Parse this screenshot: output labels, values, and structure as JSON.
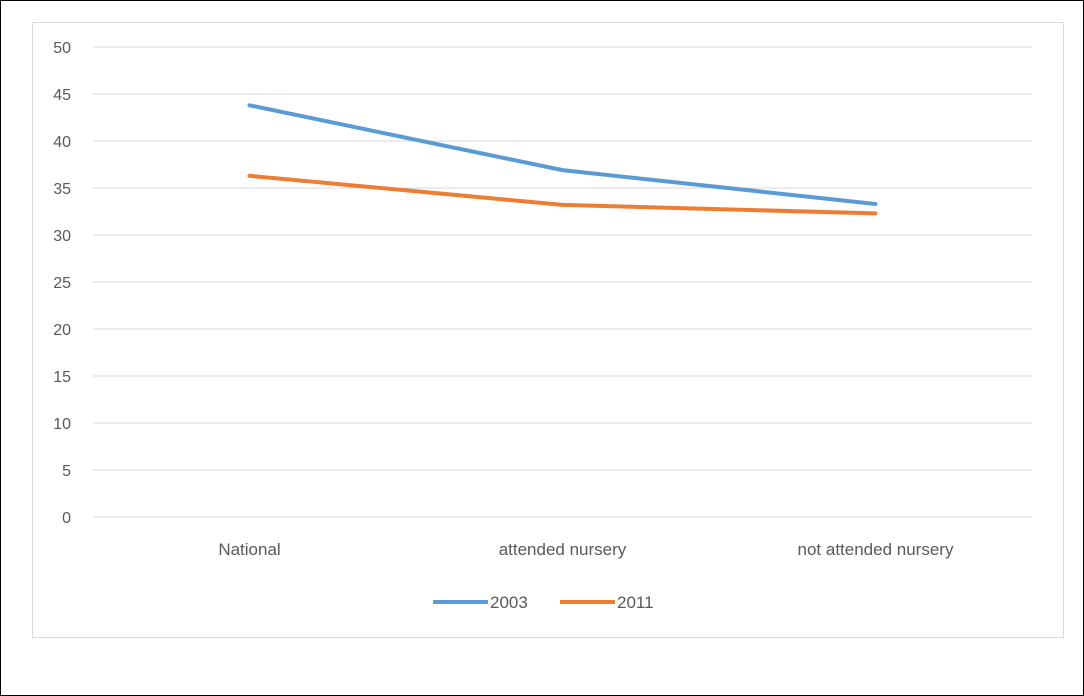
{
  "chart_data": {
    "type": "line",
    "categories": [
      "National",
      "attended nursery",
      "not attended nursery"
    ],
    "series": [
      {
        "name": "2003",
        "values": [
          43.8,
          36.9,
          33.3
        ],
        "color": "#5b9bd5"
      },
      {
        "name": "2011",
        "values": [
          36.3,
          33.2,
          32.3
        ],
        "color": "#ed7d31"
      }
    ],
    "ylim": [
      0,
      50
    ],
    "yticks": [
      0,
      5,
      10,
      15,
      20,
      25,
      30,
      35,
      40,
      45,
      50
    ],
    "grid": true,
    "legend": "bottom",
    "title": "",
    "xlabel": "",
    "ylabel": ""
  }
}
